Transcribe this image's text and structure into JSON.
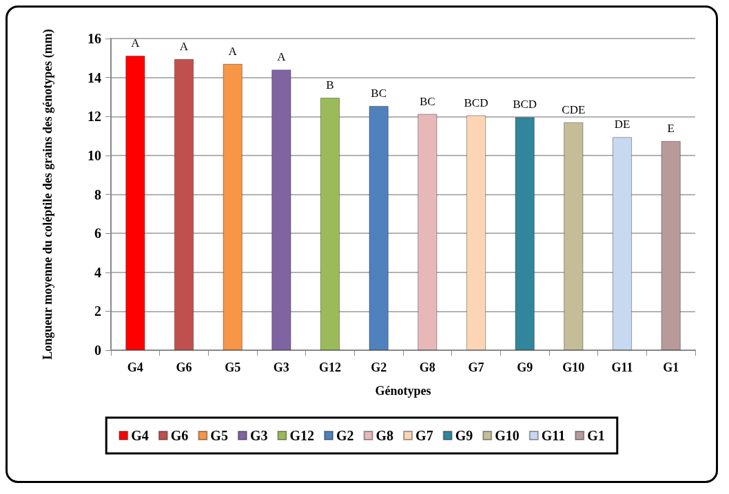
{
  "chart_data": {
    "type": "bar",
    "xlabel": "Génotypes",
    "ylabel": "Longueur moyenne du coléptile des grains des génotypes (mm)",
    "categories": [
      "G4",
      "G6",
      "G5",
      "G3",
      "G12",
      "G2",
      "G8",
      "G7",
      "G9",
      "G10",
      "G11",
      "G1"
    ],
    "series": [
      {
        "name": "G4",
        "color": "#ff0000",
        "values": [
          15.12,
          null,
          null,
          null,
          null,
          null,
          null,
          null,
          null,
          null,
          null,
          null
        ]
      },
      {
        "name": "G6",
        "color": "#c0504d",
        "values": [
          null,
          14.95,
          null,
          null,
          null,
          null,
          null,
          null,
          null,
          null,
          null,
          null
        ]
      },
      {
        "name": "G5",
        "color": "#f79646",
        "values": [
          null,
          null,
          14.7,
          null,
          null,
          null,
          null,
          null,
          null,
          null,
          null,
          null
        ]
      },
      {
        "name": "G3",
        "color": "#8064a2",
        "values": [
          null,
          null,
          null,
          14.4,
          null,
          null,
          null,
          null,
          null,
          null,
          null,
          null
        ]
      },
      {
        "name": "G12",
        "color": "#9bbb59",
        "values": [
          null,
          null,
          null,
          null,
          12.96,
          null,
          null,
          null,
          null,
          null,
          null,
          null
        ]
      },
      {
        "name": "G2",
        "color": "#4f81bd",
        "values": [
          null,
          null,
          null,
          null,
          null,
          12.54,
          null,
          null,
          null,
          null,
          null,
          null
        ]
      },
      {
        "name": "G8",
        "color": "#e6b9b8",
        "values": [
          null,
          null,
          null,
          null,
          null,
          null,
          12.13,
          null,
          null,
          null,
          null,
          null
        ]
      },
      {
        "name": "G7",
        "color": "#fcd5b5",
        "values": [
          null,
          null,
          null,
          null,
          null,
          null,
          null,
          12.06,
          null,
          null,
          null,
          null
        ]
      },
      {
        "name": "G9",
        "color": "#31859c",
        "values": [
          null,
          null,
          null,
          null,
          null,
          null,
          null,
          null,
          11.96,
          null,
          null,
          null
        ]
      },
      {
        "name": "G10",
        "color": "#c4bd97",
        "values": [
          null,
          null,
          null,
          null,
          null,
          null,
          null,
          null,
          null,
          11.7,
          null,
          null
        ]
      },
      {
        "name": "G11",
        "color": "#c6d9f1",
        "values": [
          null,
          null,
          null,
          null,
          null,
          null,
          null,
          null,
          null,
          null,
          10.94,
          null
        ]
      },
      {
        "name": "G1",
        "color": "#b89a9a",
        "values": [
          null,
          null,
          null,
          null,
          null,
          null,
          null,
          null,
          null,
          null,
          null,
          10.74
        ]
      }
    ],
    "ylim": [
      0,
      16
    ],
    "yticks": [
      0,
      2,
      4,
      6,
      8,
      10,
      12,
      14,
      16
    ],
    "grid": "y",
    "legend": "bottom",
    "annotations": [
      {
        "text": "A",
        "x": "G4",
        "y": 15.12
      },
      {
        "text": "A",
        "x": "G6",
        "y": 14.95
      },
      {
        "text": "A",
        "x": "G5",
        "y": 14.7
      },
      {
        "text": "A",
        "x": "G3",
        "y": 14.4
      },
      {
        "text": "B",
        "x": "G12",
        "y": 12.96
      },
      {
        "text": "BC",
        "x": "G2",
        "y": 12.54
      },
      {
        "text": "BC",
        "x": "G8",
        "y": 12.13
      },
      {
        "text": "BCD",
        "x": "G7",
        "y": 12.06
      },
      {
        "text": "BCD",
        "x": "G9",
        "y": 11.96
      },
      {
        "text": "CDE",
        "x": "G10",
        "y": 11.7
      },
      {
        "text": "DE",
        "x": "G11",
        "y": 10.94
      },
      {
        "text": "E",
        "x": "G1",
        "y": 10.74
      }
    ]
  }
}
